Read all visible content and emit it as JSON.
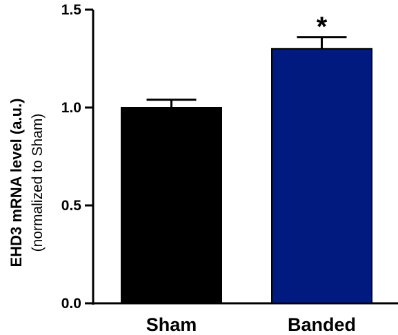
{
  "chart_data": {
    "type": "bar",
    "title": "",
    "xlabel": "",
    "ylabel": "EHD3 mRNA level  (a.u.)",
    "ylabel_sub": "(normalized to Sham)",
    "ylim": [
      0,
      1.5
    ],
    "yticks": [
      "0.0",
      "0.5",
      "1.0",
      "1.5"
    ],
    "categories": [
      "Sham",
      "Banded"
    ],
    "values": [
      1.0,
      1.3
    ],
    "errors": [
      0.04,
      0.06
    ],
    "colors": [
      "#000000",
      "#001a80"
    ],
    "annotations": [
      {
        "category": "Banded",
        "text": "*"
      }
    ],
    "grid": false
  }
}
